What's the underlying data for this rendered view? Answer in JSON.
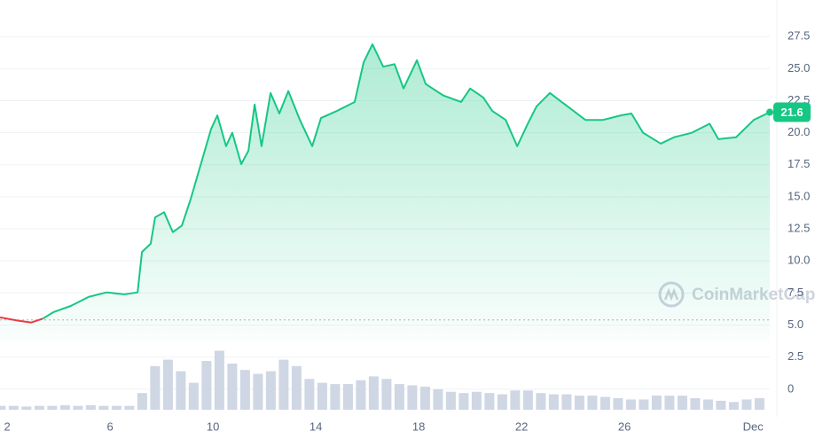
{
  "chart_data": {
    "type": "line",
    "x": [
      1.72,
      2.41,
      2.93,
      3.38,
      3.79,
      4.48,
      5.17,
      5.86,
      6.55,
      7.07,
      7.24,
      7.58,
      7.75,
      8.1,
      8.44,
      8.79,
      9.13,
      9.58,
      9.93,
      10.17,
      10.51,
      10.75,
      11.1,
      11.38,
      11.62,
      11.89,
      12.24,
      12.58,
      12.93,
      13.38,
      13.86,
      14.2,
      14.82,
      15.51,
      15.86,
      16.2,
      16.62,
      17.06,
      17.41,
      17.93,
      18.27,
      18.96,
      19.65,
      20.0,
      20.51,
      20.86,
      21.38,
      21.83,
      22.24,
      22.58,
      23.1,
      23.79,
      24.48,
      25.17,
      25.86,
      26.27,
      26.72,
      27.41,
      27.93,
      28.62,
      29.31,
      29.65,
      30.34,
      31.03,
      31.65
    ],
    "series": [
      {
        "color": "#16c784",
        "down_color": "#ea3943",
        "values": [
          5.6,
          5.35,
          5.2,
          5.5,
          6.0,
          6.5,
          7.2,
          7.55,
          7.4,
          7.55,
          10.7,
          11.35,
          13.4,
          13.8,
          12.25,
          12.75,
          14.8,
          17.9,
          20.3,
          21.35,
          18.95,
          20.0,
          17.55,
          18.6,
          22.2,
          18.95,
          23.1,
          21.5,
          23.25,
          21.0,
          18.95,
          21.15,
          21.7,
          22.4,
          25.5,
          26.9,
          25.15,
          25.35,
          23.45,
          25.65,
          23.8,
          22.9,
          22.4,
          23.45,
          22.75,
          21.7,
          21.0,
          18.95,
          20.7,
          22.05,
          23.1,
          22.05,
          21.0,
          21.0,
          21.35,
          21.5,
          20.0,
          19.15,
          19.65,
          20.0,
          20.7,
          19.5,
          19.65,
          21.0,
          21.6
        ]
      }
    ],
    "volume": {
      "type": "bar",
      "color": "#cfd6e4",
      "x": [
        1.75,
        2.25,
        2.75,
        3.25,
        3.75,
        4.25,
        4.75,
        5.25,
        5.75,
        6.25,
        6.75,
        7.25,
        7.75,
        8.25,
        8.75,
        9.25,
        9.75,
        10.25,
        10.75,
        11.25,
        11.75,
        12.25,
        12.75,
        13.25,
        13.75,
        14.25,
        14.75,
        15.25,
        15.75,
        16.25,
        16.75,
        17.25,
        17.75,
        18.25,
        18.75,
        19.25,
        19.75,
        20.25,
        20.75,
        21.25,
        21.75,
        22.25,
        22.75,
        23.25,
        23.75,
        24.25,
        24.75,
        25.25,
        25.75,
        26.25,
        26.75,
        27.25,
        27.75,
        28.25,
        28.75,
        29.25,
        29.75,
        30.25,
        30.75,
        31.25
      ],
      "values": [
        -1.3,
        -1.3,
        -1.35,
        -1.3,
        -1.3,
        -1.25,
        -1.3,
        -1.25,
        -1.3,
        -1.3,
        -1.3,
        -0.3,
        1.8,
        2.3,
        1.4,
        0.5,
        2.2,
        3.0,
        2.0,
        1.5,
        1.2,
        1.4,
        2.3,
        1.8,
        0.8,
        0.5,
        0.4,
        0.4,
        0.7,
        1.0,
        0.8,
        0.4,
        0.3,
        0.2,
        0.0,
        -0.2,
        -0.3,
        -0.2,
        -0.3,
        -0.4,
        -0.1,
        -0.1,
        -0.3,
        -0.4,
        -0.4,
        -0.5,
        -0.5,
        -0.6,
        -0.7,
        -0.8,
        -0.8,
        -0.5,
        -0.5,
        -0.5,
        -0.7,
        -0.8,
        -0.9,
        -1.0,
        -0.8,
        -0.7
      ]
    },
    "reference_line": 5.4,
    "price_label": "21.6",
    "watermark": "CoinMarketCap",
    "xlim": [
      1.72,
      31.65
    ],
    "xticks": [
      2,
      6,
      10,
      14,
      18,
      22,
      26,
      {
        "value": 31,
        "label": "Dec"
      }
    ],
    "ylim": [
      -1.6,
      30.35
    ],
    "yticks": [
      0,
      2.5,
      {
        "value": 5,
        "label": "5.0"
      },
      7.5,
      {
        "value": 10,
        "label": "10.0"
      },
      12.5,
      {
        "value": 15,
        "label": "15.0"
      },
      17.5,
      {
        "value": 20,
        "label": "20.0"
      },
      22.5,
      {
        "value": 25,
        "label": "25.0"
      },
      27.5
    ],
    "grid": true
  }
}
